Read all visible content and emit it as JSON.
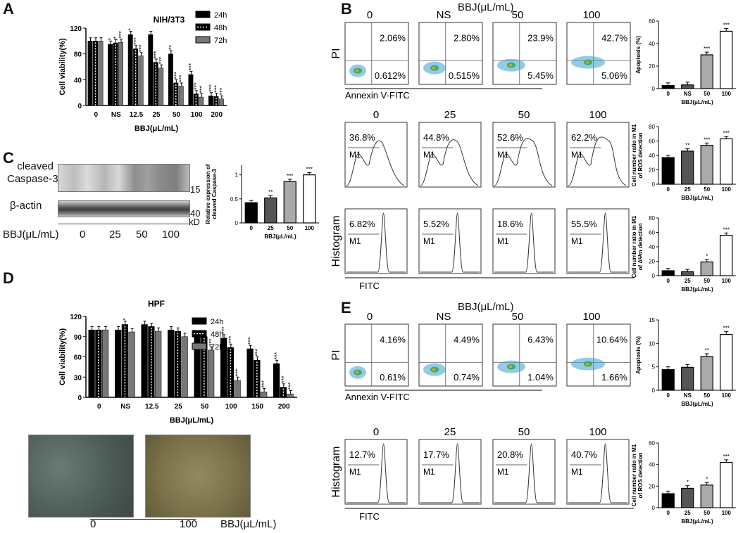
{
  "panels": {
    "A": {
      "label": "A",
      "chart_title": "NIH/3T3",
      "ylabel": "Cell viability(%)",
      "xlabel": "BBJ(μL/mL)",
      "yticks": [
        "0",
        "40",
        "80",
        "120"
      ],
      "legend": [
        "24h",
        "48h",
        "72h"
      ]
    },
    "B": {
      "label": "B",
      "header": "BBJ(μL/mL)",
      "flow_apoptosis": {
        "dose_labels": [
          "0",
          "NS",
          "50",
          "100"
        ],
        "upper_right": [
          "2.06%",
          "2.80%",
          "23.9%",
          "42.7%"
        ],
        "lower_right": [
          "0.612%",
          "0.515%",
          "5.45%",
          "5.06%"
        ],
        "y_axis": "PI",
        "x_axis": "Annexin V-FITC"
      },
      "ros_hist": {
        "dose_labels": [
          "0",
          "25",
          "50",
          "100"
        ],
        "percents": [
          "36.8%",
          "44.8%",
          "52.6%",
          "62.2%"
        ],
        "gate": "M1"
      },
      "mmp_hist": {
        "percents": [
          "6.82%",
          "5.52%",
          "18.6%",
          "55.5%"
        ],
        "gate": "M1",
        "y_axis": "Histogram",
        "x_axis": "FITC"
      }
    },
    "C": {
      "label": "C",
      "band1_label": "cleaved\nCaspase-3",
      "band1_line1": "cleaved",
      "band1_line2": "Caspase-3",
      "band1_kd": "15",
      "band2_label": "β-actin",
      "band2_kd": "40",
      "kd_unit": "kD",
      "dose_label": "BBJ(μL/mL)",
      "doses": [
        "0",
        "25",
        "50",
        "100"
      ],
      "ylabel": "Relative expression of cleaved Caspase-3",
      "xlabel": "BBJ(μL/mL)",
      "yticks": [
        "0",
        "0.5",
        "1.0"
      ]
    },
    "D": {
      "label": "D",
      "chart_title": "HPF",
      "ylabel": "Cell viability(%)",
      "xlabel": "BBJ(μL/mL)",
      "yticks": [
        "0",
        "30",
        "60",
        "90",
        "120"
      ],
      "legend": [
        "24h",
        "48h",
        "72h"
      ],
      "micro_labels": [
        "0",
        "100"
      ],
      "micro_unit": "BBJ(μL/mL)"
    },
    "E": {
      "label": "E",
      "header": "BBJ(μL/mL)",
      "flow_apoptosis": {
        "dose_labels": [
          "0",
          "NS",
          "50",
          "100"
        ],
        "upper_right": [
          "4.16%",
          "4.49%",
          "6.43%",
          "10.64%"
        ],
        "lower_right": [
          "0.61%",
          "0.74%",
          "1.04%",
          "1.66%"
        ],
        "y_axis": "PI",
        "x_axis": "Annexin V-FITC"
      },
      "ros_hist": {
        "dose_labels": [
          "0",
          "25",
          "50",
          "100"
        ],
        "percents": [
          "12.7%",
          "17.7%",
          "20.8%",
          "40.7%"
        ],
        "gate": "M1",
        "y_axis": "Histogram",
        "x_axis": "FITC"
      }
    }
  },
  "chart_data": [
    {
      "id": "A",
      "type": "bar",
      "title": "NIH/3T3",
      "xlabel": "BBJ(μL/mL)",
      "ylabel": "Cell viability(%)",
      "ylim": [
        0,
        120
      ],
      "categories": [
        "0",
        "NS",
        "12.5",
        "25",
        "50",
        "100",
        "200"
      ],
      "series": [
        {
          "name": "24h",
          "values": [
            100,
            95,
            110,
            110,
            80,
            48,
            15
          ],
          "sig": [
            "",
            "*",
            "*",
            "",
            "**",
            "***",
            "***"
          ]
        },
        {
          "name": "48h",
          "values": [
            100,
            97,
            88,
            67,
            35,
            18,
            14
          ],
          "sig": [
            "",
            "*",
            "***",
            "***",
            "***",
            "***",
            "***"
          ]
        },
        {
          "name": "72h",
          "values": [
            100,
            98,
            77,
            58,
            30,
            13,
            10
          ],
          "sig": [
            "",
            "***",
            "***",
            "***",
            "***",
            "***",
            "***"
          ]
        }
      ]
    },
    {
      "id": "B1",
      "type": "bar",
      "ylabel": "Apoptosis (%)",
      "xlabel": "BBJ(μL/mL)",
      "ylim": [
        0,
        60
      ],
      "yticks": [
        0,
        20,
        40,
        60
      ],
      "categories": [
        "0",
        "NS",
        "50",
        "100"
      ],
      "values": [
        2.7,
        3.3,
        30,
        51
      ],
      "sig": [
        "",
        "",
        "***",
        "***"
      ]
    },
    {
      "id": "B2",
      "type": "bar",
      "ylabel": "Cell number ratio in M1 of ROS detection",
      "xlabel": "BBJ(μL/mL)",
      "ylim": [
        0,
        80
      ],
      "yticks": [
        0,
        20,
        40,
        60,
        80
      ],
      "categories": [
        "0",
        "25",
        "50",
        "100"
      ],
      "values": [
        37,
        46,
        54,
        63
      ],
      "sig": [
        "",
        "**",
        "***",
        "***"
      ]
    },
    {
      "id": "B3",
      "type": "bar",
      "ylabel": "Cell number ratio in M1 of ΔΨm detection",
      "xlabel": "BBJ(μL/mL)",
      "ylim": [
        0,
        80
      ],
      "yticks": [
        0,
        20,
        40,
        60,
        80
      ],
      "categories": [
        "0",
        "25",
        "50",
        "100"
      ],
      "values": [
        6.8,
        5.5,
        19,
        56
      ],
      "sig": [
        "",
        "",
        "*",
        "***"
      ]
    },
    {
      "id": "C",
      "type": "bar",
      "ylabel": "Relative expression of cleaved Caspase-3",
      "xlabel": "BBJ(μL/mL)",
      "ylim": [
        0,
        1.2
      ],
      "yticks": [
        0,
        0.5,
        1.0
      ],
      "categories": [
        "0",
        "25",
        "50",
        "100"
      ],
      "values": [
        0.42,
        0.52,
        0.86,
        1.0
      ],
      "sig": [
        "",
        "**",
        "***",
        "***"
      ]
    },
    {
      "id": "D",
      "type": "bar",
      "title": "HPF",
      "xlabel": "BBJ(μL/mL)",
      "ylabel": "Cell viability(%)",
      "ylim": [
        0,
        120
      ],
      "categories": [
        "0",
        "NS",
        "12.5",
        "25",
        "50",
        "100",
        "150",
        "200"
      ],
      "series": [
        {
          "name": "24h",
          "values": [
            100,
            100,
            108,
            100,
            92,
            88,
            72,
            50
          ],
          "sig": [
            "",
            "",
            "",
            "",
            "",
            "***",
            "***",
            "***"
          ]
        },
        {
          "name": "48h",
          "values": [
            100,
            108,
            105,
            98,
            90,
            74,
            55,
            15
          ],
          "sig": [
            "",
            "*",
            "",
            "",
            "*",
            "***",
            "***",
            "***"
          ]
        },
        {
          "name": "72h",
          "values": [
            100,
            97,
            98,
            90,
            70,
            25,
            8,
            5
          ],
          "sig": [
            "",
            "",
            "",
            "",
            "***",
            "***",
            "***",
            "***"
          ]
        }
      ]
    },
    {
      "id": "E1",
      "type": "bar",
      "ylabel": "Apoptosis (%)",
      "xlabel": "BBJ(μL/mL)",
      "ylim": [
        0,
        15
      ],
      "yticks": [
        0,
        5,
        10,
        15
      ],
      "categories": [
        "0",
        "NS",
        "50",
        "100"
      ],
      "values": [
        4.4,
        4.9,
        7.2,
        11.9
      ],
      "sig": [
        "",
        "",
        "**",
        "***"
      ]
    },
    {
      "id": "E2",
      "type": "bar",
      "ylabel": "Cell number ratio in M1 of ROS detection",
      "xlabel": "BBJ(μL/mL)",
      "ylim": [
        0,
        60
      ],
      "yticks": [
        0,
        20,
        40,
        60
      ],
      "categories": [
        "0",
        "25",
        "50",
        "100"
      ],
      "values": [
        13,
        18,
        21,
        42
      ],
      "sig": [
        "",
        "*",
        "*",
        "***"
      ]
    }
  ]
}
